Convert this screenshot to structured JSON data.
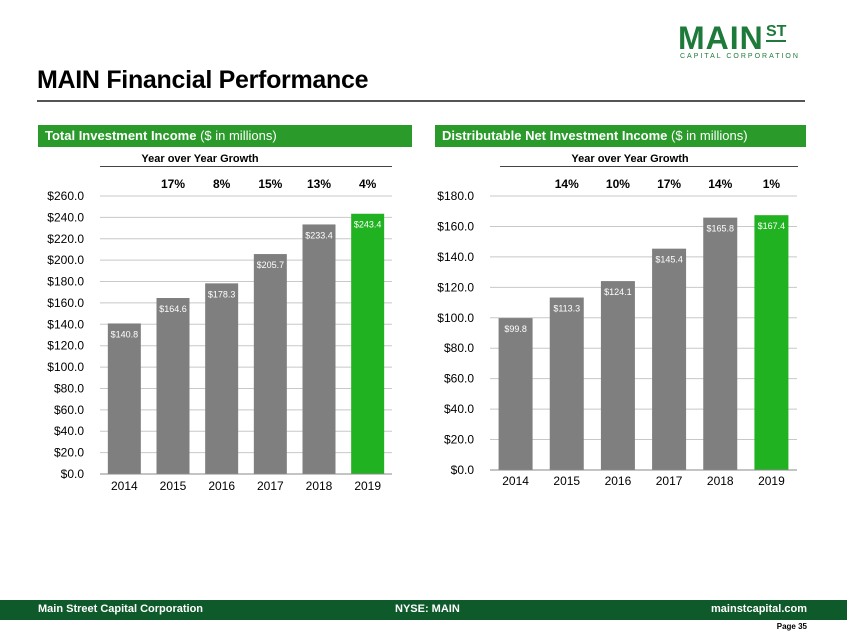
{
  "brand": {
    "logo_main": "MAIN",
    "logo_st": "ST",
    "logo_sub": "CAPITAL CORPORATION",
    "accent_color": "#1e7a3a",
    "bar_color": "#7f7f7f",
    "highlight_color": "#21b221",
    "header_color": "#2a9a2a",
    "footer_color": "#0f5a2a"
  },
  "page": {
    "title": "MAIN Financial Performance"
  },
  "panels": [
    {
      "header_bold": "Total Investment Income",
      "header_rest": " ($ in millions)",
      "yoy_label": "Year over Year Growth"
    },
    {
      "header_bold": "Distributable Net Investment Income",
      "header_rest": " ($ in millions)",
      "yoy_label": "Year over Year Growth"
    }
  ],
  "chart_data": [
    {
      "type": "bar",
      "title": "Total Investment Income ($ in millions)",
      "categories": [
        "2014",
        "2015",
        "2016",
        "2017",
        "2018",
        "2019"
      ],
      "values": [
        140.8,
        164.6,
        178.3,
        205.7,
        233.4,
        243.4
      ],
      "value_labels": [
        "$140.8",
        "$164.6",
        "$178.3",
        "$205.7",
        "$233.4",
        "$243.4"
      ],
      "growth_labels": [
        "17%",
        "8%",
        "15%",
        "13%",
        "4%"
      ],
      "yticks": [
        "$0.0",
        "$20.0",
        "$40.0",
        "$60.0",
        "$80.0",
        "$100.0",
        "$120.0",
        "$140.0",
        "$160.0",
        "$180.0",
        "$200.0",
        "$220.0",
        "$240.0",
        "$260.0"
      ],
      "ylim": [
        0,
        260
      ],
      "highlight_index": 5,
      "grid": true
    },
    {
      "type": "bar",
      "title": "Distributable Net Investment Income ($ in millions)",
      "categories": [
        "2014",
        "2015",
        "2016",
        "2017",
        "2018",
        "2019"
      ],
      "values": [
        99.8,
        113.3,
        124.1,
        145.4,
        165.8,
        167.4
      ],
      "value_labels": [
        "$99.8",
        "$113.3",
        "$124.1",
        "$145.4",
        "$165.8",
        "$167.4"
      ],
      "growth_labels": [
        "14%",
        "10%",
        "17%",
        "14%",
        "1%"
      ],
      "yticks": [
        "$0.0",
        "$20.0",
        "$40.0",
        "$60.0",
        "$80.0",
        "$100.0",
        "$120.0",
        "$140.0",
        "$160.0",
        "$180.0"
      ],
      "ylim": [
        0,
        180
      ],
      "highlight_index": 5,
      "grid": true
    }
  ],
  "footer": {
    "company": "Main Street Capital Corporation",
    "ticker": "NYSE: MAIN",
    "website": "mainstcapital.com",
    "page_label": "Page  35"
  }
}
